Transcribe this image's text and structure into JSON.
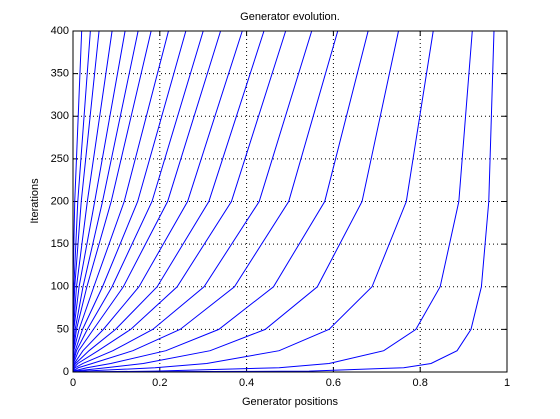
{
  "chart_data": {
    "type": "line",
    "title": "Generator evolution.",
    "x_label": "Generator positions",
    "y_label": "Iterations",
    "xlim": [
      0,
      1
    ],
    "ylim": [
      0,
      400
    ],
    "xticks": [
      0,
      0.2,
      0.4,
      0.6,
      0.8,
      1
    ],
    "yticks": [
      0,
      50,
      100,
      150,
      200,
      250,
      300,
      350,
      400
    ],
    "grid": true,
    "color": "#0000ff",
    "y": [
      0,
      1,
      5,
      10,
      25,
      50,
      100,
      200,
      400
    ],
    "series": [
      {
        "x": [
          0,
          0.544,
          0.762,
          0.825,
          0.885,
          0.917,
          0.941,
          0.958,
          0.97
        ]
      },
      {
        "x": [
          0,
          0.189,
          0.475,
          0.59,
          0.716,
          0.79,
          0.846,
          0.889,
          0.92
        ]
      },
      {
        "x": [
          0,
          0.024,
          0.189,
          0.308,
          0.475,
          0.59,
          0.689,
          0.768,
          0.83
        ]
      },
      {
        "x": [
          0,
          0.003,
          0.076,
          0.162,
          0.316,
          0.443,
          0.563,
          0.666,
          0.75
        ]
      },
      {
        "x": [
          0,
          0,
          0.032,
          0.087,
          0.214,
          0.336,
          0.462,
          0.58,
          0.68
        ]
      },
      {
        "x": [
          0,
          0,
          0.012,
          0.044,
          0.138,
          0.247,
          0.372,
          0.497,
          0.61
        ]
      },
      {
        "x": [
          0,
          0,
          0.005,
          0.023,
          0.092,
          0.184,
          0.302,
          0.429,
          0.55
        ]
      },
      {
        "x": [
          0,
          0,
          0.002,
          0.011,
          0.058,
          0.133,
          0.24,
          0.365,
          0.49
        ]
      },
      {
        "x": [
          0,
          0,
          0,
          0.006,
          0.037,
          0.098,
          0.194,
          0.313,
          0.44
        ]
      },
      {
        "x": [
          0,
          0,
          0,
          0.003,
          0.023,
          0.07,
          0.152,
          0.264,
          0.39
        ]
      },
      {
        "x": [
          0,
          0,
          0,
          0.001,
          0.013,
          0.047,
          0.116,
          0.218,
          0.34
        ]
      },
      {
        "x": [
          0,
          0,
          0,
          0,
          0.008,
          0.033,
          0.09,
          0.182,
          0.3
        ]
      },
      {
        "x": [
          0,
          0,
          0,
          0,
          0.005,
          0.022,
          0.068,
          0.149,
          0.26
        ]
      },
      {
        "x": [
          0,
          0,
          0,
          0,
          0.002,
          0.014,
          0.048,
          0.118,
          0.22
        ]
      },
      {
        "x": [
          0,
          0,
          0,
          0,
          0.001,
          0.008,
          0.032,
          0.088,
          0.18
        ]
      },
      {
        "x": [
          0,
          0,
          0,
          0,
          0,
          0.005,
          0.023,
          0.068,
          0.15
        ]
      },
      {
        "x": [
          0,
          0,
          0,
          0,
          0,
          0.002,
          0.014,
          0.05,
          0.12
        ]
      },
      {
        "x": [
          0,
          0,
          0,
          0,
          0,
          0.001,
          0.008,
          0.033,
          0.09
        ]
      },
      {
        "x": [
          0,
          0,
          0,
          0,
          0,
          0,
          0.004,
          0.019,
          0.06
        ]
      },
      {
        "x": [
          0,
          0,
          0,
          0,
          0,
          0,
          0.002,
          0.011,
          0.04
        ]
      },
      {
        "x": [
          0,
          0,
          0,
          0,
          0,
          0,
          0,
          0.004,
          0.02
        ]
      }
    ]
  }
}
